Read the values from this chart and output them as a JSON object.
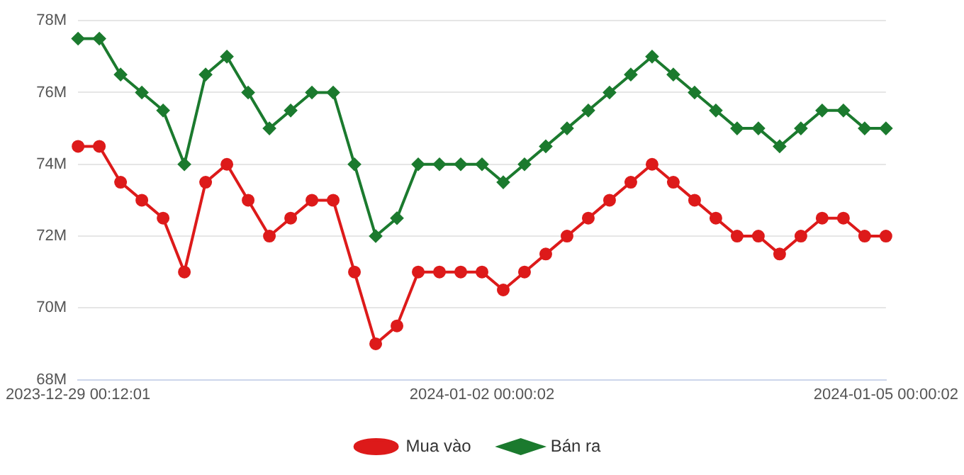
{
  "chart_data": {
    "type": "line",
    "categories": [
      "2023-12-29 00:12:01",
      null,
      null,
      null,
      null,
      null,
      null,
      null,
      null,
      null,
      null,
      null,
      null,
      null,
      null,
      null,
      null,
      null,
      null,
      "2024-01-02 00:00:02",
      null,
      null,
      null,
      null,
      null,
      null,
      null,
      null,
      null,
      null,
      null,
      null,
      null,
      null,
      null,
      null,
      null,
      null,
      "2024-01-05 00:00:02"
    ],
    "series": [
      {
        "name": "Mua vào",
        "color": "#dd1a1a",
        "marker": "circle",
        "values": [
          74.5,
          74.5,
          73.5,
          73,
          72.5,
          71,
          73.5,
          74,
          73,
          72,
          72.5,
          73,
          73,
          71,
          69,
          69.5,
          71,
          71,
          71,
          71,
          70.5,
          71,
          71.5,
          72,
          72.5,
          73,
          73.5,
          74,
          73.5,
          73,
          72.5,
          72,
          72,
          71.5,
          72,
          72.5,
          72.5,
          72,
          72
        ]
      },
      {
        "name": "Bán ra",
        "color": "#1b7a2e",
        "marker": "diamond",
        "values": [
          77.5,
          77.5,
          76.5,
          76,
          75.5,
          74,
          76.5,
          77,
          76,
          75,
          75.5,
          76,
          76,
          74,
          72,
          72.5,
          74,
          74,
          74,
          74,
          73.5,
          74,
          74.5,
          75,
          75.5,
          76,
          76.5,
          77,
          76.5,
          76,
          75.5,
          75,
          75,
          74.5,
          75,
          75.5,
          75.5,
          75,
          75
        ]
      }
    ],
    "ylim": [
      68,
      78
    ],
    "yticks": [
      {
        "value": 68,
        "label": "68M"
      },
      {
        "value": 70,
        "label": "70M"
      },
      {
        "value": 72,
        "label": "72M"
      },
      {
        "value": 74,
        "label": "74M"
      },
      {
        "value": 76,
        "label": "76M"
      },
      {
        "value": 78,
        "label": "78M"
      }
    ],
    "grid": "y",
    "legend": "bottom"
  }
}
